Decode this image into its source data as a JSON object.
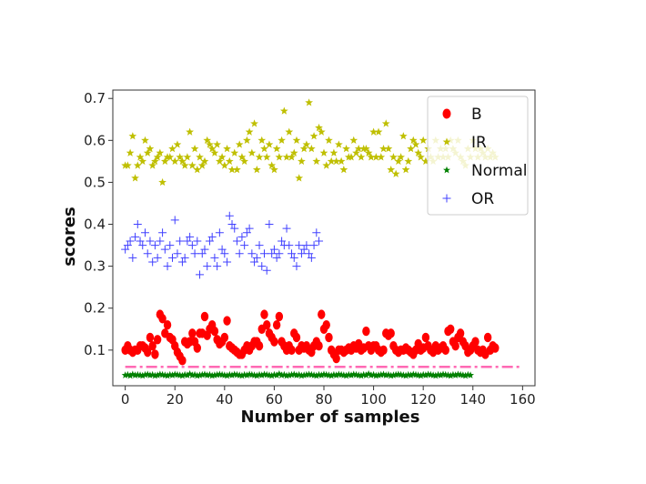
{
  "chart_data": {
    "type": "scatter",
    "title": "",
    "xlabel": "Number of samples",
    "ylabel": "scores",
    "xlim": [
      -5,
      165
    ],
    "ylim": [
      0.015,
      0.72
    ],
    "xticks": [
      0,
      20,
      40,
      60,
      80,
      100,
      120,
      140,
      160
    ],
    "yticks": [
      0.1,
      0.2,
      0.3,
      0.4,
      0.5,
      0.6,
      0.7
    ],
    "xtick_labels": [
      "0",
      "20",
      "40",
      "60",
      "80",
      "100",
      "120",
      "140",
      "160"
    ],
    "ytick_labels": [
      "0.1",
      "0.2",
      "0.3",
      "0.4",
      "0.5",
      "0.6",
      "0.7"
    ],
    "grid": false,
    "legend_position": "top-right",
    "threshold": {
      "value": 0.06,
      "x_start": 0,
      "x_end": 159,
      "color": "#ff69b4",
      "style": "dash-dot"
    },
    "series": [
      {
        "name": "B",
        "marker": "circle",
        "color": "#ff0000",
        "values": [
          0.1,
          0.11,
          0.1,
          0.095,
          0.1,
          0.1,
          0.11,
          0.11,
          0.105,
          0.095,
          0.13,
          0.11,
          0.09,
          0.125,
          0.185,
          0.175,
          0.14,
          0.16,
          0.13,
          0.125,
          0.11,
          0.095,
          0.085,
          0.075,
          0.12,
          0.115,
          0.12,
          0.14,
          0.12,
          0.105,
          0.14,
          0.14,
          0.18,
          0.135,
          0.15,
          0.16,
          0.145,
          0.125,
          0.115,
          0.12,
          0.13,
          0.17,
          0.11,
          0.105,
          0.1,
          0.095,
          0.09,
          0.09,
          0.1,
          0.11,
          0.1,
          0.11,
          0.12,
          0.12,
          0.11,
          0.15,
          0.185,
          0.16,
          0.14,
          0.13,
          0.12,
          0.16,
          0.18,
          0.12,
          0.11,
          0.1,
          0.11,
          0.1,
          0.14,
          0.13,
          0.1,
          0.11,
          0.105,
          0.11,
          0.1,
          0.095,
          0.11,
          0.12,
          0.11,
          0.185,
          0.15,
          0.16,
          0.13,
          0.1,
          0.09,
          0.08,
          0.1,
          0.1,
          0.095,
          0.1,
          0.105,
          0.1,
          0.11,
          0.105,
          0.115,
          0.1,
          0.105,
          0.145,
          0.11,
          0.1,
          0.11,
          0.11,
          0.1,
          0.095,
          0.1,
          0.14,
          0.135,
          0.14,
          0.11,
          0.1,
          0.095,
          0.1,
          0.1,
          0.105,
          0.1,
          0.095,
          0.09,
          0.1,
          0.115,
          0.1,
          0.105,
          0.13,
          0.11,
          0.1,
          0.095,
          0.11,
          0.1,
          0.105,
          0.11,
          0.1,
          0.145,
          0.15,
          0.12,
          0.11,
          0.13,
          0.14,
          0.12,
          0.11,
          0.095,
          0.1,
          0.11,
          0.12,
          0.1,
          0.095,
          0.1,
          0.09,
          0.13,
          0.1,
          0.11,
          0.105
        ]
      },
      {
        "name": "IR",
        "marker": "star",
        "color": "#bfbf00",
        "values": [
          0.54,
          0.54,
          0.57,
          0.61,
          0.51,
          0.54,
          0.56,
          0.55,
          0.6,
          0.57,
          0.58,
          0.54,
          0.55,
          0.56,
          0.57,
          0.5,
          0.55,
          0.56,
          0.56,
          0.58,
          0.55,
          0.59,
          0.56,
          0.55,
          0.54,
          0.56,
          0.62,
          0.54,
          0.58,
          0.53,
          0.56,
          0.54,
          0.55,
          0.6,
          0.59,
          0.58,
          0.57,
          0.59,
          0.55,
          0.56,
          0.54,
          0.58,
          0.55,
          0.53,
          0.57,
          0.53,
          0.59,
          0.56,
          0.55,
          0.6,
          0.62,
          0.57,
          0.64,
          0.53,
          0.56,
          0.6,
          0.58,
          0.56,
          0.59,
          0.54,
          0.53,
          0.58,
          0.56,
          0.6,
          0.67,
          0.56,
          0.62,
          0.56,
          0.57,
          0.6,
          0.51,
          0.55,
          0.58,
          0.59,
          0.69,
          0.58,
          0.61,
          0.55,
          0.63,
          0.62,
          0.57,
          0.54,
          0.6,
          0.55,
          0.57,
          0.55,
          0.59,
          0.55,
          0.53,
          0.58,
          0.56,
          0.56,
          0.6,
          0.57,
          0.58,
          0.56,
          0.58,
          0.58,
          0.57,
          0.56,
          0.62,
          0.56,
          0.62,
          0.56,
          0.58,
          0.64,
          0.58,
          0.53,
          0.56,
          0.52,
          0.55,
          0.56,
          0.61,
          0.53,
          0.55,
          0.58,
          0.6,
          0.59,
          0.57,
          0.56,
          0.6,
          0.55,
          0.58,
          0.56,
          0.55,
          0.6,
          0.56,
          0.58,
          0.56,
          0.58,
          0.56,
          0.6,
          0.58,
          0.57,
          0.6,
          0.56,
          0.55,
          0.54,
          0.58,
          0.56,
          0.6,
          0.58,
          0.56,
          0.58,
          0.57,
          0.56,
          0.58,
          0.56,
          0.57,
          0.56
        ]
      },
      {
        "name": "Normal",
        "marker": "star",
        "color": "#008000",
        "values": [
          0.04,
          0.041,
          0.039,
          0.042,
          0.04,
          0.041,
          0.04,
          0.039,
          0.041,
          0.042,
          0.04,
          0.041,
          0.039,
          0.04,
          0.042,
          0.041,
          0.04,
          0.039,
          0.041,
          0.04,
          0.042,
          0.041,
          0.04,
          0.039,
          0.041,
          0.04,
          0.043,
          0.04,
          0.041,
          0.039,
          0.04,
          0.041,
          0.042,
          0.04,
          0.041,
          0.039,
          0.04,
          0.041,
          0.042,
          0.041,
          0.04,
          0.039,
          0.041,
          0.04,
          0.042,
          0.041,
          0.04,
          0.039,
          0.041,
          0.04,
          0.042,
          0.041,
          0.04,
          0.039,
          0.041,
          0.04,
          0.042,
          0.041,
          0.04,
          0.039,
          0.041,
          0.04,
          0.043,
          0.04,
          0.041,
          0.039,
          0.04,
          0.041,
          0.042,
          0.04,
          0.041,
          0.039,
          0.04,
          0.041,
          0.042,
          0.041,
          0.04,
          0.039,
          0.041,
          0.04,
          0.042,
          0.041,
          0.04,
          0.039,
          0.041,
          0.04,
          0.042,
          0.041,
          0.04,
          0.039,
          0.041,
          0.04,
          0.042,
          0.041,
          0.04,
          0.039,
          0.041,
          0.04,
          0.043,
          0.04,
          0.041,
          0.039,
          0.04,
          0.041,
          0.042,
          0.04,
          0.041,
          0.039,
          0.04,
          0.041,
          0.042,
          0.041,
          0.04,
          0.039,
          0.041,
          0.04,
          0.042,
          0.041,
          0.04,
          0.039,
          0.041,
          0.04,
          0.042,
          0.041,
          0.04,
          0.039,
          0.041,
          0.04,
          0.042,
          0.041,
          0.04,
          0.039,
          0.041,
          0.04,
          0.042,
          0.041,
          0.04,
          0.039,
          0.041,
          0.04
        ]
      },
      {
        "name": "OR",
        "marker": "plus",
        "color": "#4040ff",
        "values": [
          0.34,
          0.35,
          0.36,
          0.32,
          0.37,
          0.4,
          0.36,
          0.35,
          0.38,
          0.33,
          0.36,
          0.31,
          0.35,
          0.32,
          0.36,
          0.38,
          0.34,
          0.3,
          0.35,
          0.32,
          0.41,
          0.33,
          0.36,
          0.31,
          0.32,
          0.36,
          0.37,
          0.35,
          0.33,
          0.36,
          0.28,
          0.33,
          0.34,
          0.3,
          0.36,
          0.37,
          0.32,
          0.3,
          0.38,
          0.34,
          0.33,
          0.31,
          0.42,
          0.4,
          0.39,
          0.36,
          0.33,
          0.37,
          0.35,
          0.38,
          0.39,
          0.33,
          0.31,
          0.32,
          0.35,
          0.3,
          0.33,
          0.29,
          0.4,
          0.33,
          0.34,
          0.32,
          0.33,
          0.36,
          0.35,
          0.39,
          0.35,
          0.33,
          0.32,
          0.3,
          0.35,
          0.33,
          0.34,
          0.35,
          0.33,
          0.32,
          0.35,
          0.38,
          0.36
        ]
      }
    ]
  }
}
